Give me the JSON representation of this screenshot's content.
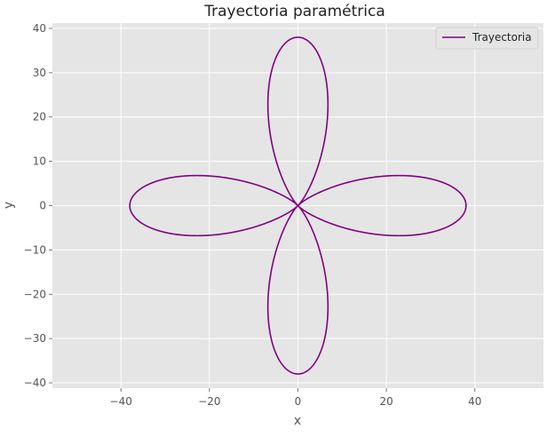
{
  "chart_data": {
    "type": "line",
    "title": "Trayectoria paramétrica",
    "xlabel": "x",
    "ylabel": "y",
    "xlim": [
      -55.5,
      55.5
    ],
    "ylim": [
      -41.2,
      41.2
    ],
    "xticks": [
      -40,
      -20,
      0,
      20,
      40
    ],
    "yticks": [
      -40,
      -30,
      -20,
      -10,
      0,
      10,
      20,
      30,
      40
    ],
    "xtick_labels": [
      "−40",
      "−20",
      "0",
      "20",
      "40"
    ],
    "ytick_labels": [
      "−40",
      "−30",
      "−20",
      "−10",
      "0",
      "10",
      "20",
      "30",
      "40"
    ],
    "grid": true,
    "legend_position": "top-right",
    "series": [
      {
        "name": "Trayectoria",
        "color": "#800080",
        "equation": {
          "x": "30*cos(2t)*cos(t) + 8*cos(6t)*cos(t)",
          "y": "30*cos(2t)*sin(t) + 8*cos(6t)*sin(t)",
          "t_range": [
            0,
            6.283185307
          ]
        }
      }
    ]
  }
}
